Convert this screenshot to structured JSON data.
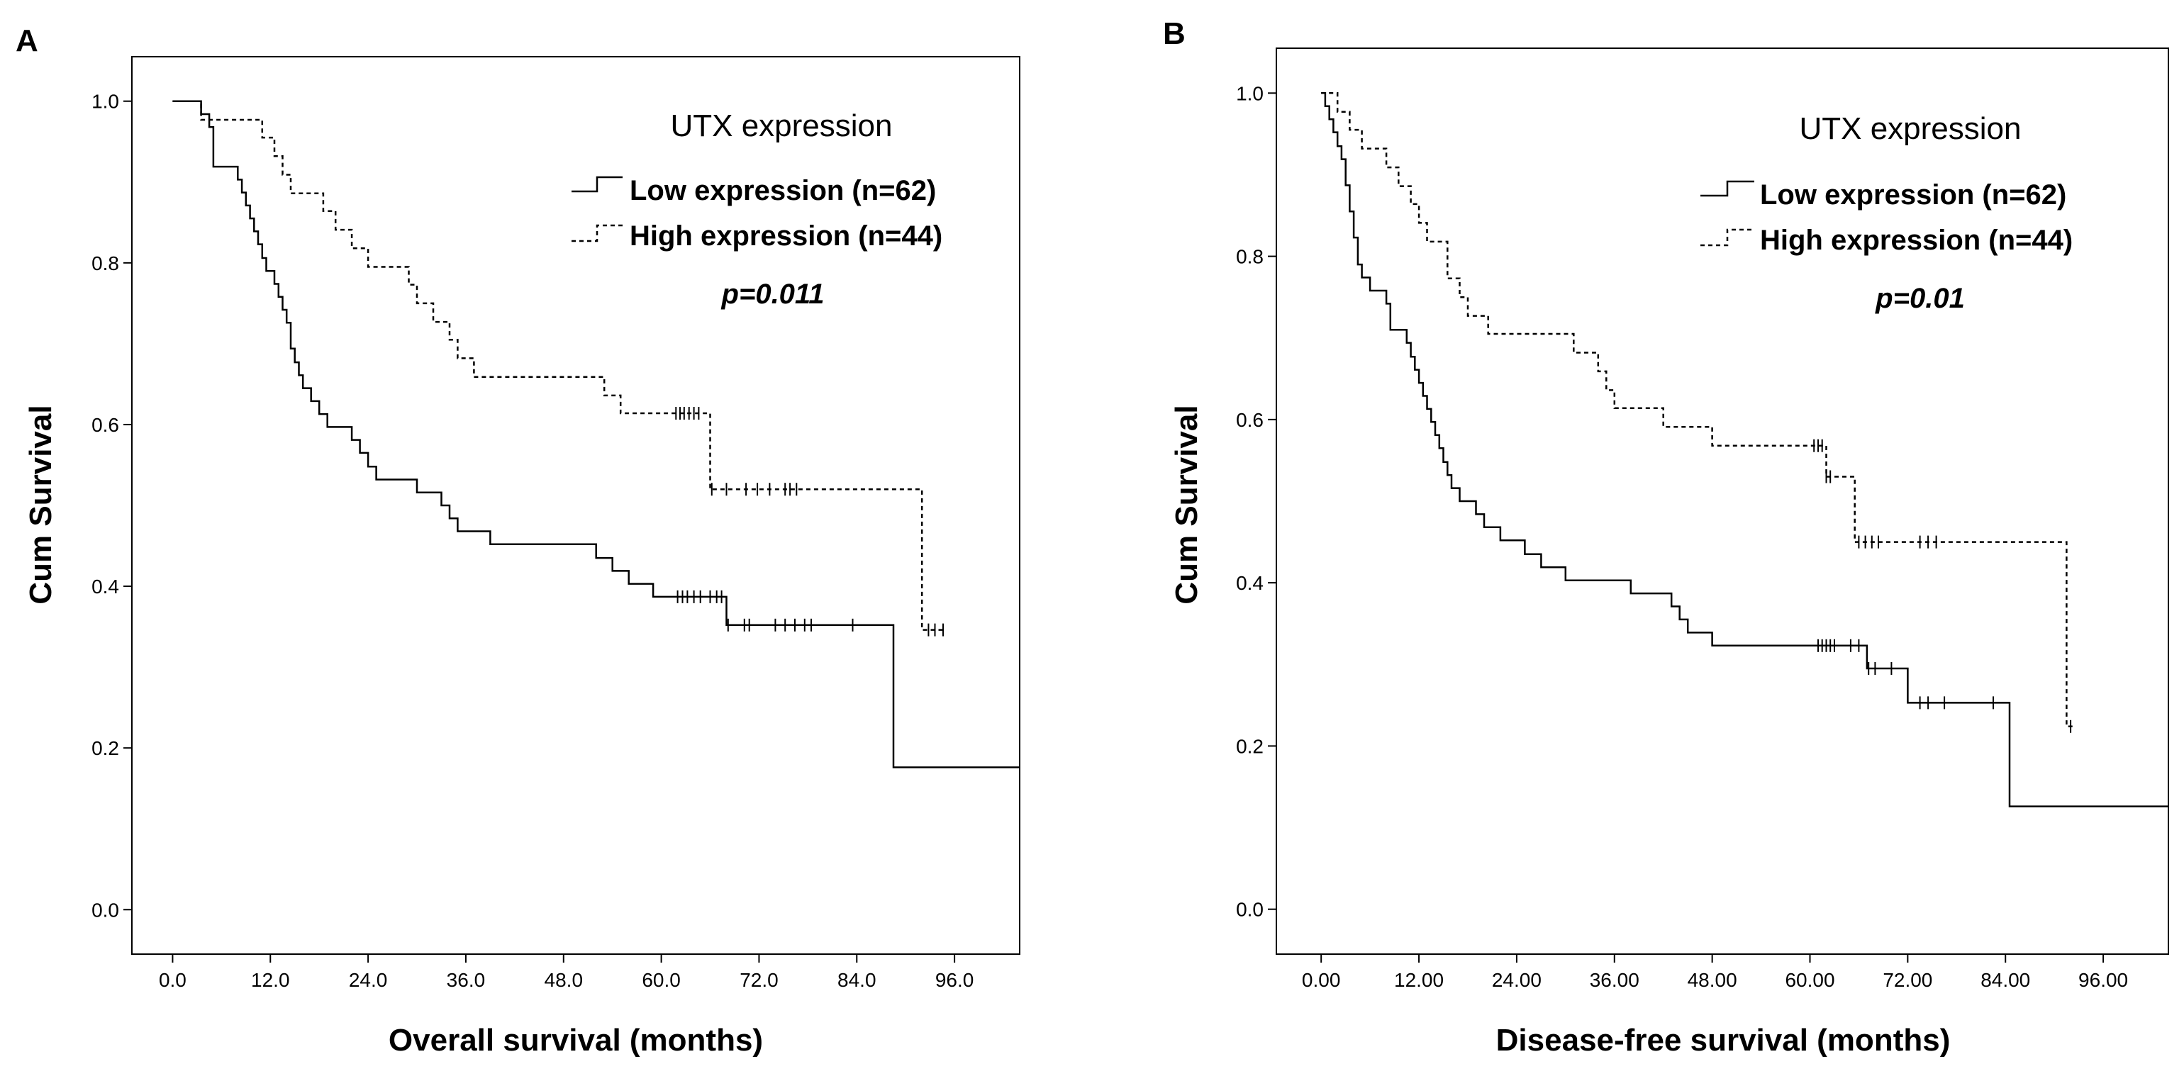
{
  "figure": {
    "panels": [
      {
        "label": "A",
        "ylabel": "Cum Survival",
        "xlabel": "Overall survival (months)",
        "legend_title": "UTX expression",
        "p_value": "p=0.011"
      },
      {
        "label": "B",
        "ylabel": "Cum Survival",
        "xlabel": "Disease-free survival (months)",
        "legend_title": "UTX expression",
        "p_value": "p=0.01"
      }
    ]
  },
  "chart_data": [
    {
      "type": "line",
      "subtype": "kaplan-meier",
      "panel": "A",
      "xlabel": "Overall survival (months)",
      "ylabel": "Cum Survival",
      "xlim": [
        -5,
        104
      ],
      "ylim": [
        -0.055,
        1.055
      ],
      "x_ticks": [
        0,
        12,
        24,
        36,
        48,
        60,
        72,
        84,
        96
      ],
      "x_tick_labels": [
        "0.0",
        "12.0",
        "24.0",
        "36.0",
        "48.0",
        "60.0",
        "72.0",
        "84.0",
        "96.0"
      ],
      "y_ticks": [
        0,
        0.2,
        0.4,
        0.6,
        0.8,
        1.0
      ],
      "y_tick_labels": [
        "0.0",
        "0.2",
        "0.4",
        "0.6",
        "0.8",
        "1.0"
      ],
      "legend": {
        "title": "UTX expression",
        "placement": "top-right"
      },
      "annotation": "p=0.011",
      "series": [
        {
          "name": "Low expression (n=62)",
          "style": "solid",
          "steps": [
            [
              0,
              1.0
            ],
            [
              3.5,
              0.984
            ],
            [
              4.5,
              0.968
            ],
            [
              5,
              0.919
            ],
            [
              8,
              0.903
            ],
            [
              8.5,
              0.887
            ],
            [
              9,
              0.871
            ],
            [
              9.5,
              0.855
            ],
            [
              10,
              0.839
            ],
            [
              10.5,
              0.823
            ],
            [
              11,
              0.806
            ],
            [
              11.5,
              0.79
            ],
            [
              12.5,
              0.774
            ],
            [
              13,
              0.758
            ],
            [
              13.5,
              0.742
            ],
            [
              14,
              0.726
            ],
            [
              14.5,
              0.694
            ],
            [
              15,
              0.677
            ],
            [
              15.5,
              0.661
            ],
            [
              16,
              0.645
            ],
            [
              17,
              0.629
            ],
            [
              18,
              0.613
            ],
            [
              19,
              0.597
            ],
            [
              22,
              0.581
            ],
            [
              23,
              0.565
            ],
            [
              24,
              0.548
            ],
            [
              25,
              0.532
            ],
            [
              30,
              0.516
            ],
            [
              33,
              0.5
            ],
            [
              34,
              0.484
            ],
            [
              35,
              0.468
            ],
            [
              39,
              0.452
            ],
            [
              52,
              0.435
            ],
            [
              54,
              0.419
            ],
            [
              56,
              0.403
            ],
            [
              59,
              0.387
            ],
            [
              68,
              0.352
            ],
            [
              88.5,
              0.176
            ]
          ],
          "end_x": 104,
          "censored": [
            62,
            62.6,
            63.2,
            64,
            64.8,
            66,
            66.8,
            67.4,
            68.2,
            70.2,
            70.8,
            74,
            75.2,
            76.4,
            77.6,
            78.4,
            83.5
          ]
        },
        {
          "name": "High expression (n=44)",
          "style": "dashed",
          "steps": [
            [
              0,
              1.0
            ],
            [
              3.5,
              0.977
            ],
            [
              11,
              0.955
            ],
            [
              12.5,
              0.932
            ],
            [
              13.5,
              0.909
            ],
            [
              14.5,
              0.886
            ],
            [
              18.5,
              0.864
            ],
            [
              20,
              0.841
            ],
            [
              22,
              0.818
            ],
            [
              24,
              0.795
            ],
            [
              29,
              0.773
            ],
            [
              30,
              0.75
            ],
            [
              32,
              0.727
            ],
            [
              34,
              0.705
            ],
            [
              35,
              0.682
            ],
            [
              37,
              0.659
            ],
            [
              53,
              0.636
            ],
            [
              55,
              0.614
            ],
            [
              66,
              0.52
            ],
            [
              92,
              0.346
            ]
          ],
          "end_x": 94.6,
          "censored": [
            61.8,
            62.3,
            62.8,
            63.4,
            64,
            64.6,
            66.2,
            68,
            70.4,
            71.8,
            73.3,
            75.2,
            75.8,
            76.6,
            92.8,
            93.6,
            94.6
          ]
        }
      ]
    },
    {
      "type": "line",
      "subtype": "kaplan-meier",
      "panel": "B",
      "xlabel": "Disease-free survival (months)",
      "ylabel": "Cum Survival",
      "xlim": [
        -5.5,
        104
      ],
      "ylim": [
        -0.055,
        1.055
      ],
      "x_ticks": [
        0,
        12,
        24,
        36,
        48,
        60,
        72,
        84,
        96
      ],
      "x_tick_labels": [
        "0.00",
        "12.00",
        "24.00",
        "36.00",
        "48.00",
        "60.00",
        "72.00",
        "84.00",
        "96.00"
      ],
      "y_ticks": [
        0,
        0.2,
        0.4,
        0.6,
        0.8,
        1.0
      ],
      "y_tick_labels": [
        "0.0",
        "0.2",
        "0.4",
        "0.6",
        "0.8",
        "1.0"
      ],
      "legend": {
        "title": "UTX expression",
        "placement": "top-right"
      },
      "annotation": "p=0.01",
      "series": [
        {
          "name": "Low expression (n=62)",
          "style": "solid",
          "steps": [
            [
              0,
              1.0
            ],
            [
              0.5,
              0.984
            ],
            [
              1,
              0.968
            ],
            [
              1.5,
              0.952
            ],
            [
              2,
              0.935
            ],
            [
              2.5,
              0.919
            ],
            [
              3,
              0.887
            ],
            [
              3.5,
              0.855
            ],
            [
              4,
              0.823
            ],
            [
              4.5,
              0.79
            ],
            [
              5,
              0.774
            ],
            [
              6,
              0.758
            ],
            [
              8,
              0.742
            ],
            [
              8.5,
              0.71
            ],
            [
              10.5,
              0.694
            ],
            [
              11,
              0.677
            ],
            [
              11.5,
              0.661
            ],
            [
              12,
              0.645
            ],
            [
              12.5,
              0.629
            ],
            [
              13,
              0.613
            ],
            [
              13.5,
              0.597
            ],
            [
              14,
              0.581
            ],
            [
              14.5,
              0.565
            ],
            [
              15,
              0.548
            ],
            [
              15.5,
              0.532
            ],
            [
              16,
              0.516
            ],
            [
              17,
              0.5
            ],
            [
              19,
              0.484
            ],
            [
              20,
              0.468
            ],
            [
              22,
              0.452
            ],
            [
              25,
              0.435
            ],
            [
              27,
              0.419
            ],
            [
              30,
              0.403
            ],
            [
              38,
              0.387
            ],
            [
              43,
              0.371
            ],
            [
              44,
              0.355
            ],
            [
              45,
              0.339
            ],
            [
              48,
              0.323
            ],
            [
              61,
              0.323
            ],
            [
              67,
              0.295
            ],
            [
              72,
              0.253
            ],
            [
              84.5,
              0.126
            ]
          ],
          "end_x": 104,
          "censored": [
            61,
            61.5,
            62,
            62.5,
            63,
            65,
            66,
            67.2,
            68,
            70,
            73.5,
            74.5,
            76.5,
            82.5
          ]
        },
        {
          "name": "High expression (n=44)",
          "style": "dashed",
          "steps": [
            [
              0,
              1.0
            ],
            [
              2,
              0.977
            ],
            [
              3.5,
              0.955
            ],
            [
              5,
              0.932
            ],
            [
              8,
              0.909
            ],
            [
              9.5,
              0.886
            ],
            [
              11,
              0.864
            ],
            [
              12,
              0.841
            ],
            [
              13,
              0.818
            ],
            [
              15.5,
              0.773
            ],
            [
              17,
              0.75
            ],
            [
              18,
              0.727
            ],
            [
              20.5,
              0.705
            ],
            [
              31,
              0.682
            ],
            [
              34,
              0.659
            ],
            [
              35,
              0.636
            ],
            [
              36,
              0.614
            ],
            [
              42,
              0.591
            ],
            [
              48,
              0.568
            ],
            [
              62,
              0.53
            ],
            [
              65.5,
              0.45
            ],
            [
              91.5,
              0.224
            ]
          ],
          "end_x": 92.5,
          "censored": [
            60.5,
            61,
            61.5,
            62,
            62.5,
            66,
            66.8,
            67.6,
            68.4,
            73.5,
            74.5,
            75.5,
            92
          ]
        }
      ]
    }
  ]
}
